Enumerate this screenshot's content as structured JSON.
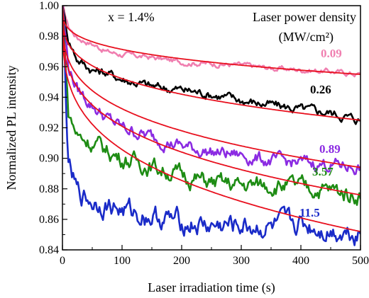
{
  "chart_data": {
    "type": "line",
    "title": "",
    "xlabel": "Laser irradiation time (s)",
    "ylabel": "Normalized PL  intensity",
    "xlim": [
      0,
      500
    ],
    "ylim": [
      0.84,
      1.0
    ],
    "x_ticks": [
      0,
      100,
      200,
      300,
      400,
      500
    ],
    "y_ticks": [
      0.84,
      0.86,
      0.88,
      0.9,
      0.92,
      0.94,
      0.96,
      0.98,
      1.0
    ],
    "x_tick_labels": [
      "0",
      "100",
      "200",
      "300",
      "400",
      "500"
    ],
    "y_tick_labels": [
      "0.84",
      "0.86",
      "0.88",
      "0.90",
      "0.92",
      "0.94",
      "0.96",
      "0.98",
      "1.00"
    ],
    "grid": false,
    "annotation": "x = 1.4%",
    "legend_title_line1": "Laser power density",
    "legend_title_line2": "(MW/cm²)",
    "legend_placement": "top-right",
    "fit_color": "#e8101e",
    "series": [
      {
        "name": "0.09",
        "color": "#f07fb0",
        "fit_asymptote": 0.952,
        "fit_amplitude": 0.048,
        "fit_tau": 80,
        "data": [
          [
            0,
            1.0
          ],
          [
            10,
            0.986
          ],
          [
            25,
            0.979
          ],
          [
            50,
            0.975
          ],
          [
            75,
            0.97
          ],
          [
            100,
            0.968
          ],
          [
            150,
            0.966
          ],
          [
            200,
            0.963
          ],
          [
            250,
            0.962
          ],
          [
            300,
            0.961
          ],
          [
            350,
            0.959
          ],
          [
            400,
            0.958
          ],
          [
            450,
            0.957
          ],
          [
            500,
            0.955
          ]
        ]
      },
      {
        "name": "0.26",
        "color": "#000000",
        "fit_asymptote": 0.925,
        "fit_amplitude": 0.075,
        "fit_tau": 90,
        "data": [
          [
            0,
            1.0
          ],
          [
            10,
            0.978
          ],
          [
            25,
            0.965
          ],
          [
            50,
            0.958
          ],
          [
            75,
            0.956
          ],
          [
            100,
            0.952
          ],
          [
            150,
            0.947
          ],
          [
            200,
            0.945
          ],
          [
            250,
            0.942
          ],
          [
            300,
            0.938
          ],
          [
            350,
            0.935
          ],
          [
            400,
            0.932
          ],
          [
            450,
            0.93
          ],
          [
            500,
            0.925
          ]
        ]
      },
      {
        "name": "0.89",
        "color": "#8b2be2",
        "fit_asymptote": 0.885,
        "fit_amplitude": 0.115,
        "fit_tau": 85,
        "data": [
          [
            0,
            1.0
          ],
          [
            10,
            0.96
          ],
          [
            25,
            0.945
          ],
          [
            50,
            0.935
          ],
          [
            75,
            0.926
          ],
          [
            100,
            0.92
          ],
          [
            150,
            0.914
          ],
          [
            200,
            0.908
          ],
          [
            250,
            0.904
          ],
          [
            300,
            0.902
          ],
          [
            350,
            0.898
          ],
          [
            400,
            0.897
          ],
          [
            450,
            0.896
          ],
          [
            500,
            0.894
          ]
        ]
      },
      {
        "name": "3.57",
        "color": "#1e8c14",
        "fit_asymptote": 0.868,
        "fit_amplitude": 0.132,
        "fit_tau": 80,
        "data": [
          [
            0,
            1.0
          ],
          [
            10,
            0.93
          ],
          [
            25,
            0.915
          ],
          [
            50,
            0.91
          ],
          [
            75,
            0.905
          ],
          [
            100,
            0.9
          ],
          [
            150,
            0.895
          ],
          [
            200,
            0.889
          ],
          [
            250,
            0.884
          ],
          [
            300,
            0.882
          ],
          [
            350,
            0.883
          ],
          [
            400,
            0.881
          ],
          [
            450,
            0.879
          ],
          [
            500,
            0.876
          ]
        ]
      },
      {
        "name": "11.5",
        "color": "#1a2bc8",
        "fit_asymptote": 0.85,
        "fit_amplitude": 0.15,
        "fit_tau": 55,
        "data": [
          [
            0,
            1.0
          ],
          [
            10,
            0.895
          ],
          [
            25,
            0.877
          ],
          [
            50,
            0.872
          ],
          [
            75,
            0.87
          ],
          [
            100,
            0.866
          ],
          [
            150,
            0.862
          ],
          [
            200,
            0.858
          ],
          [
            250,
            0.855
          ],
          [
            300,
            0.856
          ],
          [
            350,
            0.854
          ],
          [
            400,
            0.857
          ],
          [
            450,
            0.853
          ],
          [
            500,
            0.852
          ]
        ]
      }
    ]
  }
}
